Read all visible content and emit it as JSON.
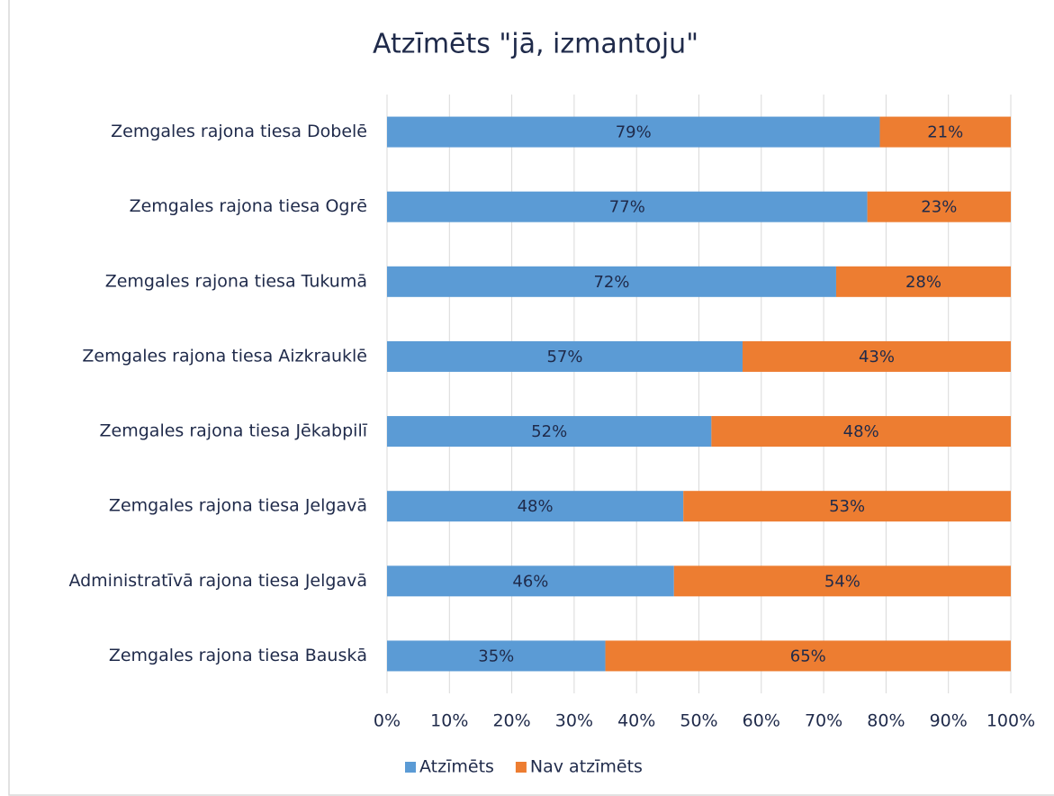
{
  "chart_data": {
    "type": "stacked_barh",
    "title": "Atzīmēts \"jā, izmantoju\"",
    "categories": [
      "Zemgales rajona tiesa Dobelē",
      "Zemgales rajona tiesa Ogrē",
      "Zemgales rajona tiesa Tukumā",
      "Zemgales rajona tiesa Aizkrauklē",
      "Zemgales rajona tiesa Jēkabpilī",
      "Zemgales rajona tiesa Jelgavā",
      "Administratīvā rajona tiesa Jelgavā",
      "Zemgales rajona tiesa Bauskā"
    ],
    "series": [
      {
        "name": "Atzīmēts",
        "color": "#5b9bd5",
        "values": [
          79,
          77,
          72,
          57,
          52,
          47.5,
          46,
          35
        ],
        "value_labels": [
          "79%",
          "77%",
          "72%",
          "57%",
          "52%",
          "48%",
          "46%",
          "35%"
        ]
      },
      {
        "name": "Nav atzīmēts",
        "color": "#ed7d31",
        "values": [
          21,
          23,
          28,
          43,
          48,
          52.5,
          54,
          65
        ],
        "value_labels": [
          "21%",
          "23%",
          "28%",
          "43%",
          "48%",
          "53%",
          "54%",
          "65%"
        ]
      }
    ],
    "xlim": [
      0,
      100
    ],
    "xticks": [
      {
        "value": 0,
        "label": "0%"
      },
      {
        "value": 10,
        "label": "10%"
      },
      {
        "value": 20,
        "label": "20%"
      },
      {
        "value": 30,
        "label": "30%"
      },
      {
        "value": 40,
        "label": "40%"
      },
      {
        "value": 50,
        "label": "50%"
      },
      {
        "value": 60,
        "label": "60%"
      },
      {
        "value": 70,
        "label": "70%"
      },
      {
        "value": 80,
        "label": "80%"
      },
      {
        "value": 90,
        "label": "90%"
      },
      {
        "value": 100,
        "label": "100%"
      }
    ],
    "grid": true,
    "legend": "bottom"
  }
}
